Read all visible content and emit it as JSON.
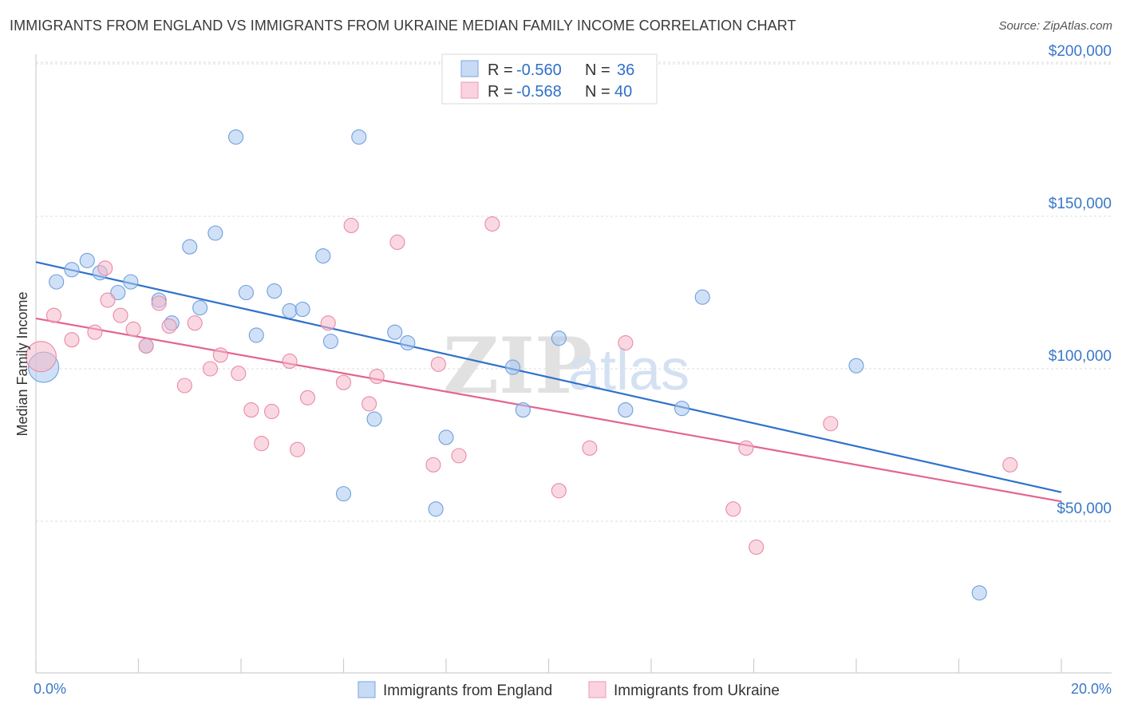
{
  "title": "IMMIGRANTS FROM ENGLAND VS IMMIGRANTS FROM UKRAINE MEDIAN FAMILY INCOME CORRELATION CHART",
  "source": "Source: ZipAtlas.com",
  "watermark": {
    "zip": "ZIP",
    "atlas": "atlas"
  },
  "legend": {
    "r_label": "R =",
    "n_label": "N =",
    "entries": [
      {
        "r": "-0.560",
        "n": "36",
        "color": "#a9c8f0"
      },
      {
        "r": "-0.568",
        "n": "40",
        "color": "#f5b8ca"
      }
    ]
  },
  "chart_data": {
    "type": "scatter",
    "ylabel": "Median Family Income",
    "xlim": [
      0,
      20
    ],
    "ylim": [
      5000,
      210000
    ],
    "x_tick_labels": [
      {
        "value": 0,
        "label": "0.0%"
      },
      {
        "value": 20,
        "label": "20.0%"
      }
    ],
    "y_ticks": [
      {
        "value": 50000,
        "label": "$50,000"
      },
      {
        "value": 100000,
        "label": "$100,000"
      },
      {
        "value": 150000,
        "label": "$150,000"
      },
      {
        "value": 200000,
        "label": "$200,000"
      }
    ],
    "series": [
      {
        "name": "Immigrants from England",
        "color": "#a9c8f0",
        "stroke": "#6f9fdc",
        "line_color": "#2f72cc",
        "trend": {
          "x": [
            0,
            20
          ],
          "y": [
            135000,
            59500
          ]
        },
        "points": [
          {
            "x": 0.15,
            "y": 100500,
            "big": true
          },
          {
            "x": 0.4,
            "y": 128500
          },
          {
            "x": 0.7,
            "y": 132500
          },
          {
            "x": 1.0,
            "y": 135500
          },
          {
            "x": 1.25,
            "y": 131500
          },
          {
            "x": 1.6,
            "y": 125000
          },
          {
            "x": 1.85,
            "y": 128500
          },
          {
            "x": 2.15,
            "y": 107500
          },
          {
            "x": 2.4,
            "y": 122500
          },
          {
            "x": 2.65,
            "y": 115000
          },
          {
            "x": 3.0,
            "y": 140000
          },
          {
            "x": 3.2,
            "y": 120000
          },
          {
            "x": 3.5,
            "y": 144500
          },
          {
            "x": 3.9,
            "y": 176000
          },
          {
            "x": 4.1,
            "y": 125000
          },
          {
            "x": 4.3,
            "y": 111000
          },
          {
            "x": 4.65,
            "y": 125500
          },
          {
            "x": 4.95,
            "y": 119000
          },
          {
            "x": 5.2,
            "y": 119500
          },
          {
            "x": 5.6,
            "y": 137000
          },
          {
            "x": 5.75,
            "y": 109000
          },
          {
            "x": 6.0,
            "y": 59000
          },
          {
            "x": 6.3,
            "y": 176000
          },
          {
            "x": 6.6,
            "y": 83500
          },
          {
            "x": 7.0,
            "y": 112000
          },
          {
            "x": 7.25,
            "y": 108500
          },
          {
            "x": 7.8,
            "y": 54000
          },
          {
            "x": 8.0,
            "y": 77500
          },
          {
            "x": 9.3,
            "y": 100500
          },
          {
            "x": 9.5,
            "y": 86500
          },
          {
            "x": 10.2,
            "y": 110000
          },
          {
            "x": 11.5,
            "y": 86500
          },
          {
            "x": 12.6,
            "y": 87000
          },
          {
            "x": 13.0,
            "y": 123500
          },
          {
            "x": 16.0,
            "y": 101000
          },
          {
            "x": 18.4,
            "y": 26500
          }
        ]
      },
      {
        "name": "Immigrants from Ukraine",
        "color": "#f5b8ca",
        "stroke": "#e98aa7",
        "line_color": "#e2658f",
        "trend": {
          "x": [
            0,
            20
          ],
          "y": [
            116500,
            56500
          ]
        },
        "points": [
          {
            "x": 0.1,
            "y": 104000,
            "big": true
          },
          {
            "x": 0.35,
            "y": 117500
          },
          {
            "x": 0.7,
            "y": 109500
          },
          {
            "x": 1.15,
            "y": 112000
          },
          {
            "x": 1.35,
            "y": 133000
          },
          {
            "x": 1.4,
            "y": 122500
          },
          {
            "x": 1.65,
            "y": 117500
          },
          {
            "x": 1.9,
            "y": 113000
          },
          {
            "x": 2.15,
            "y": 107500
          },
          {
            "x": 2.4,
            "y": 121500
          },
          {
            "x": 2.6,
            "y": 114000
          },
          {
            "x": 2.9,
            "y": 94500
          },
          {
            "x": 3.1,
            "y": 115000
          },
          {
            "x": 3.4,
            "y": 100000
          },
          {
            "x": 3.6,
            "y": 104500
          },
          {
            "x": 3.95,
            "y": 98500
          },
          {
            "x": 4.2,
            "y": 86500
          },
          {
            "x": 4.4,
            "y": 75500
          },
          {
            "x": 4.6,
            "y": 86000
          },
          {
            "x": 4.95,
            "y": 102500
          },
          {
            "x": 5.1,
            "y": 73500
          },
          {
            "x": 5.3,
            "y": 90500
          },
          {
            "x": 5.7,
            "y": 115000
          },
          {
            "x": 6.0,
            "y": 95500
          },
          {
            "x": 6.15,
            "y": 147000
          },
          {
            "x": 6.5,
            "y": 88500
          },
          {
            "x": 6.65,
            "y": 97500
          },
          {
            "x": 7.05,
            "y": 141500
          },
          {
            "x": 7.75,
            "y": 68500
          },
          {
            "x": 7.85,
            "y": 101500
          },
          {
            "x": 8.25,
            "y": 71500
          },
          {
            "x": 8.9,
            "y": 147500
          },
          {
            "x": 10.2,
            "y": 60000
          },
          {
            "x": 10.8,
            "y": 74000
          },
          {
            "x": 11.5,
            "y": 108500
          },
          {
            "x": 13.6,
            "y": 54000
          },
          {
            "x": 13.85,
            "y": 74000
          },
          {
            "x": 14.05,
            "y": 41500
          },
          {
            "x": 15.5,
            "y": 82000
          },
          {
            "x": 19.0,
            "y": 68500
          }
        ]
      }
    ]
  }
}
